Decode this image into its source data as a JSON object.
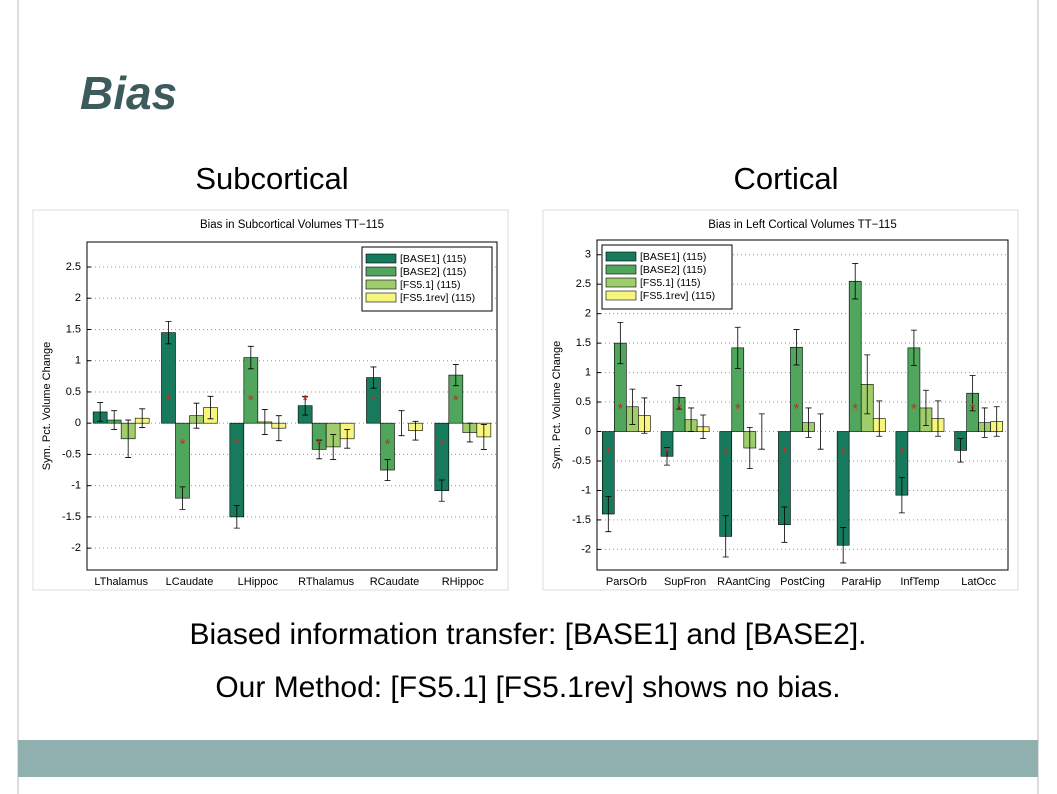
{
  "slide": {
    "title": "Bias",
    "headings": [
      "Subcortical",
      "Cortical"
    ],
    "captions": [
      "Biased information transfer: [BASE1] and [BASE2].",
      "Our Method: [FS5.1] [FS5.1rev] shows no bias."
    ]
  },
  "chart_data": [
    {
      "type": "bar",
      "title": "Bias in Subcortical Volumes TT−115",
      "ylabel": "Sym. Pct. Volume Change",
      "categories": [
        "LThalamus",
        "LCaudate",
        "LHippoc",
        "RThalamus",
        "RCaudate",
        "RHippoc"
      ],
      "series": [
        {
          "name": "[BASE1] (115)",
          "color": "#177a5c",
          "values": [
            0.18,
            1.45,
            -1.5,
            0.28,
            0.73,
            -1.08
          ],
          "errors": [
            0.15,
            0.18,
            0.18,
            0.15,
            0.17,
            0.17
          ],
          "markers": [
            null,
            "*",
            "*",
            "*",
            "*",
            "*"
          ]
        },
        {
          "name": "[BASE2] (115)",
          "color": "#4fa65c",
          "values": [
            0.05,
            -1.2,
            1.05,
            -0.42,
            -0.75,
            0.77
          ],
          "errors": [
            0.15,
            0.18,
            0.18,
            0.15,
            0.17,
            0.17
          ],
          "markers": [
            null,
            "*",
            "*",
            "*",
            "*",
            "*"
          ]
        },
        {
          "name": "[FS5.1] (115)",
          "color": "#9fcd6c",
          "values": [
            -0.25,
            0.12,
            0.02,
            -0.38,
            0.0,
            -0.15
          ],
          "errors": [
            0.3,
            0.2,
            0.2,
            0.2,
            0.2,
            0.15
          ]
        },
        {
          "name": "[FS5.1rev] (115)",
          "color": "#f6f67c",
          "values": [
            0.08,
            0.25,
            -0.08,
            -0.25,
            -0.12,
            -0.22
          ],
          "errors": [
            0.15,
            0.18,
            0.2,
            0.15,
            0.15,
            0.2
          ]
        }
      ],
      "ylim": [
        -2.35,
        2.9
      ],
      "yticks": [
        -2,
        -1.5,
        -1,
        -0.5,
        0,
        0.5,
        1,
        1.5,
        2,
        2.5
      ],
      "grid": true,
      "legend": "upper right"
    },
    {
      "type": "bar",
      "title": "Bias in Left Cortical Volumes TT−115",
      "ylabel": "Sym. Pct. Volume Change",
      "categories": [
        "ParsOrb",
        "SupFron",
        "RAantCing",
        "PostCing",
        "ParaHip",
        "InfTemp",
        "LatOcc"
      ],
      "series": [
        {
          "name": "[BASE1] (115)",
          "color": "#177a5c",
          "values": [
            -1.4,
            -0.42,
            -1.78,
            -1.58,
            -1.93,
            -1.08,
            -0.32
          ],
          "errors": [
            0.3,
            0.15,
            0.35,
            0.3,
            0.3,
            0.3,
            0.2
          ],
          "markers": [
            "*",
            "*",
            "*",
            "*",
            "*",
            "*",
            null
          ]
        },
        {
          "name": "[BASE2] (115)",
          "color": "#4fa65c",
          "values": [
            1.5,
            0.58,
            1.42,
            1.43,
            2.55,
            1.42,
            0.65
          ],
          "errors": [
            0.35,
            0.2,
            0.35,
            0.3,
            0.3,
            0.3,
            0.3
          ],
          "markers": [
            "*",
            "*",
            "*",
            "*",
            "*",
            "*",
            "*"
          ]
        },
        {
          "name": "[FS5.1] (115)",
          "color": "#9fcd6c",
          "values": [
            0.42,
            0.2,
            -0.28,
            0.15,
            0.8,
            0.4,
            0.15
          ],
          "errors": [
            0.3,
            0.2,
            0.35,
            0.25,
            0.5,
            0.3,
            0.25
          ]
        },
        {
          "name": "[FS5.1rev] (115)",
          "color": "#f6f67c",
          "values": [
            0.27,
            0.08,
            0.0,
            0.0,
            0.22,
            0.22,
            0.17
          ],
          "errors": [
            0.3,
            0.2,
            0.3,
            0.3,
            0.3,
            0.3,
            0.25
          ]
        }
      ],
      "ylim": [
        -2.35,
        3.25
      ],
      "yticks": [
        -2,
        -1.5,
        -1,
        -0.5,
        0,
        0.5,
        1,
        1.5,
        2,
        2.5,
        3
      ],
      "grid": true,
      "legend": "upper left"
    }
  ]
}
